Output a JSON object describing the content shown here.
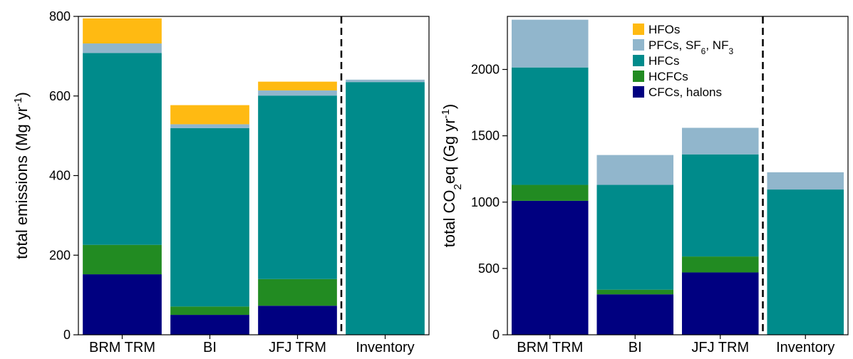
{
  "chart_data": [
    {
      "type": "bar",
      "stacked": true,
      "categories": [
        "BRM TRM",
        "BI",
        "JFJ TRM",
        "Inventory"
      ],
      "ylim": [
        0,
        800
      ],
      "yticks": [
        0,
        200,
        400,
        600,
        800
      ],
      "ylabel": {
        "main": "total emissions (Mg yr",
        "sup": "-1",
        "close": ")"
      },
      "grid": false,
      "divider_after_category": 2,
      "series": [
        {
          "name": "CFCs, halons",
          "color": "#000080",
          "values": [
            152,
            50,
            73,
            0
          ]
        },
        {
          "name": "HCFCs",
          "color": "#228B22",
          "values": [
            74,
            21,
            67,
            0
          ]
        },
        {
          "name": "HFCs",
          "color": "#008B8B",
          "values": [
            482,
            448,
            461,
            635
          ]
        },
        {
          "name": "PFCs, SF6, NF3",
          "color": "#91B6CC",
          "values": [
            24,
            10,
            13,
            6
          ]
        },
        {
          "name": "HFOs",
          "color": "#FFBA12",
          "values": [
            63,
            48,
            22,
            0
          ]
        }
      ]
    },
    {
      "type": "bar",
      "stacked": true,
      "categories": [
        "BRM TRM",
        "BI",
        "JFJ TRM",
        "Inventory"
      ],
      "ylim": [
        0,
        2400
      ],
      "yticks": [
        0,
        500,
        1000,
        1500,
        2000
      ],
      "ylabel": {
        "pre": "total CO",
        "sub": "2",
        "mid": "eq (Gg yr",
        "sup": "-1",
        "close": ")"
      },
      "grid": false,
      "divider_after_category": 2,
      "legend": {
        "position": "top-center",
        "entries": [
          {
            "key": "HFOs",
            "color": "#FFBA12",
            "parts": [
              {
                "t": "HFOs"
              }
            ]
          },
          {
            "key": "PFCs",
            "color": "#91B6CC",
            "parts": [
              {
                "t": "PFCs, SF"
              },
              {
                "t": "6",
                "sub": true
              },
              {
                "t": ", NF"
              },
              {
                "t": "3",
                "sub": true
              }
            ]
          },
          {
            "key": "HFCs",
            "color": "#008B8B",
            "parts": [
              {
                "t": "HFCs"
              }
            ]
          },
          {
            "key": "HCFCs",
            "color": "#228B22",
            "parts": [
              {
                "t": "HCFCs"
              }
            ]
          },
          {
            "key": "CFCs",
            "color": "#000080",
            "parts": [
              {
                "t": "CFCs, halons"
              }
            ]
          }
        ]
      },
      "series": [
        {
          "name": "CFCs, halons",
          "color": "#000080",
          "values": [
            1010,
            305,
            470,
            0
          ]
        },
        {
          "name": "HCFCs",
          "color": "#228B22",
          "values": [
            120,
            35,
            120,
            0
          ]
        },
        {
          "name": "HFCs",
          "color": "#008B8B",
          "values": [
            885,
            790,
            770,
            1095
          ]
        },
        {
          "name": "PFCs, SF6, NF3",
          "color": "#91B6CC",
          "values": [
            360,
            225,
            200,
            130
          ]
        },
        {
          "name": "HFOs",
          "color": "#FFBA12",
          "values": [
            0,
            0,
            0,
            0
          ]
        }
      ]
    }
  ]
}
